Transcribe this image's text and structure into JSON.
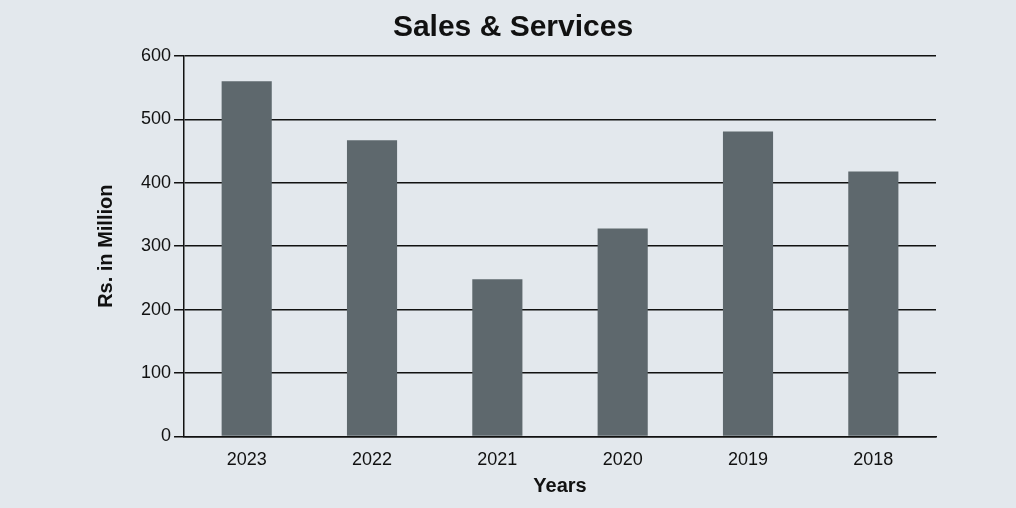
{
  "chart_data": {
    "type": "bar",
    "title": "Sales & Services",
    "xlabel": "Years",
    "ylabel": "Rs. in Million",
    "categories": [
      "2023",
      "2022",
      "2021",
      "2020",
      "2019",
      "2018"
    ],
    "values": [
      560,
      467,
      248,
      328,
      481,
      418
    ],
    "color": "#5e686d",
    "ylim": [
      0,
      600
    ],
    "yticks": [
      0,
      100,
      200,
      300,
      400,
      500,
      600
    ],
    "grid": "y"
  }
}
